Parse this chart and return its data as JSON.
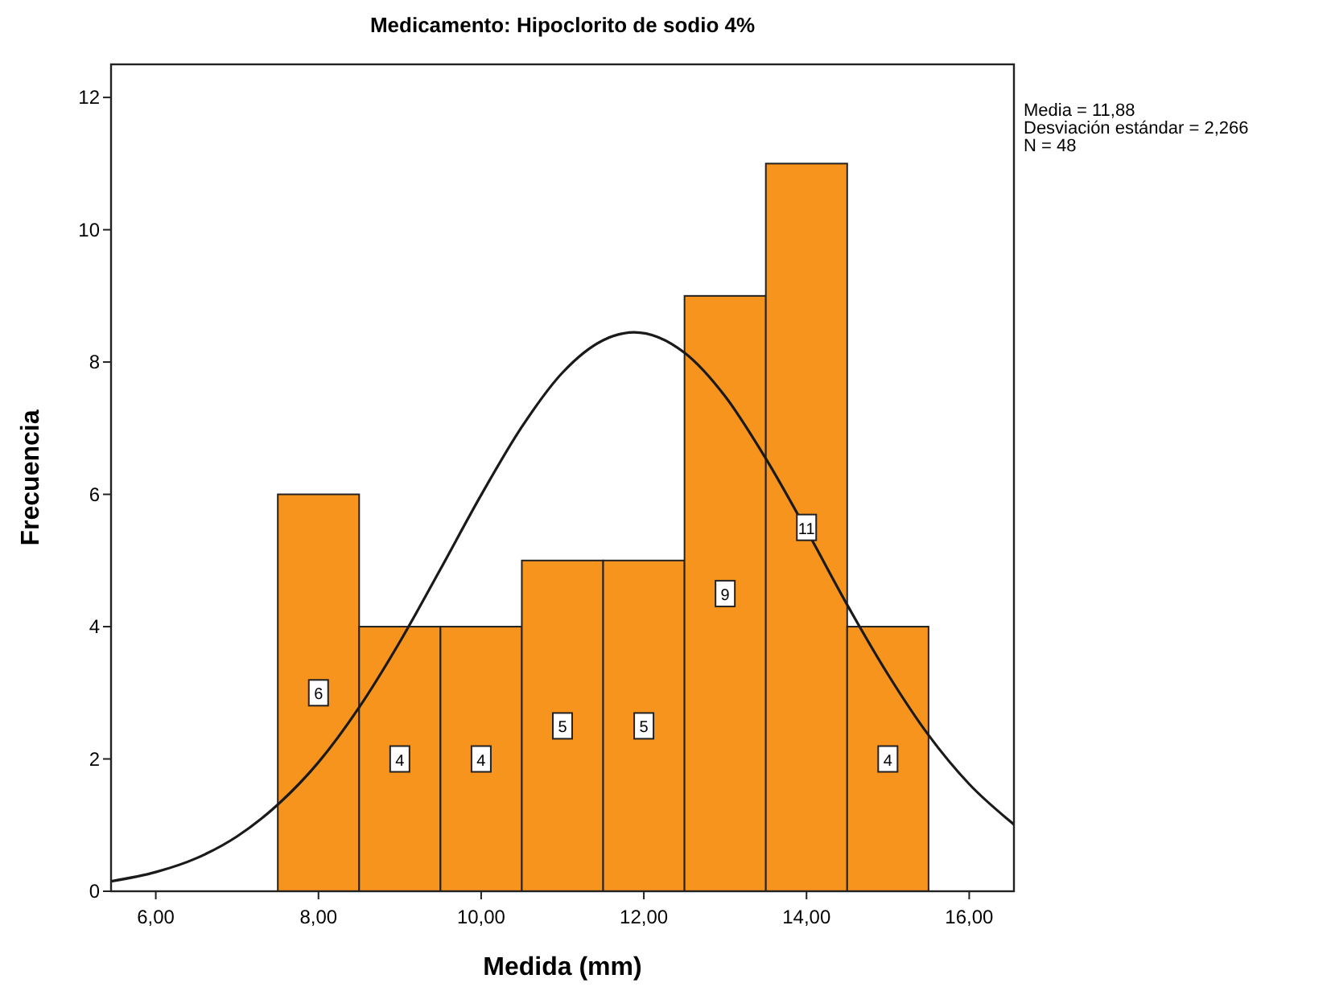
{
  "chart_data": {
    "type": "histogram",
    "title": "Medicamento: Hipoclorito de sodio 4%",
    "xlabel": "Medida (mm)",
    "ylabel": "Frecuencia",
    "annotations": [
      "Media = 11,88",
      "Desviación estándar = 2,266",
      "N = 48"
    ],
    "bins": [
      7.5,
      8.5,
      9.5,
      10.5,
      11.5,
      12.5,
      13.5,
      14.5,
      15.5
    ],
    "series": [
      {
        "color": "#f7941d",
        "values": [
          6,
          4,
          4,
          5,
          5,
          9,
          11,
          4
        ],
        "value_labels": [
          "6",
          "4",
          "4",
          "5",
          "5",
          "9",
          "11",
          "4"
        ]
      },
      {
        "type": "line",
        "color": "#1a1a1a",
        "x": [
          5.45,
          6,
          6.5,
          7,
          7.5,
          8,
          8.5,
          9,
          9.5,
          10,
          10.5,
          11,
          11.5,
          11.88,
          12.5,
          13,
          13.5,
          14,
          14.5,
          15,
          15.5,
          16,
          16.55
        ],
        "values": [
          0.15,
          0.29,
          0.5,
          0.83,
          1.31,
          1.95,
          2.78,
          3.77,
          4.87,
          5.99,
          7.02,
          7.84,
          8.33,
          8.45,
          8.14,
          7.48,
          6.54,
          5.46,
          4.33,
          3.28,
          2.36,
          1.62,
          1.01
        ]
      }
    ],
    "grid": false,
    "marker": "none",
    "line_style": "solid",
    "xlim": [
      5.45,
      16.55
    ],
    "ylim": [
      0,
      12.5
    ],
    "xticks": [
      {
        "value": 6,
        "label": "6,00"
      },
      {
        "value": 8,
        "label": "8,00"
      },
      {
        "value": 10,
        "label": "10,00"
      },
      {
        "value": 12,
        "label": "12,00"
      },
      {
        "value": 14,
        "label": "14,00"
      },
      {
        "value": 16,
        "label": "16,00"
      }
    ],
    "yticks": [
      0,
      2,
      4,
      6,
      8,
      10,
      12
    ]
  }
}
